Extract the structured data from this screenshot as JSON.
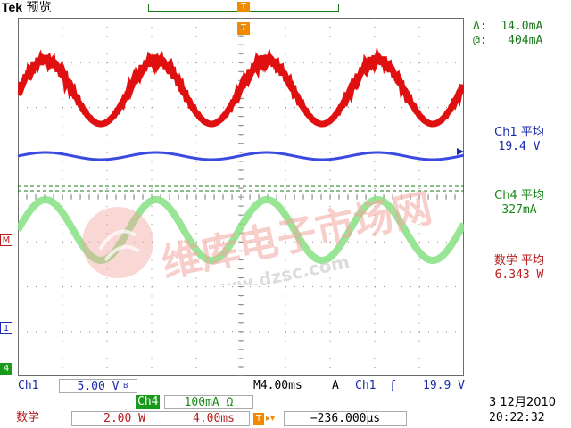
{
  "header": {
    "brand": "Tek",
    "mode": "预览"
  },
  "icons": {
    "trigger_position": "trigger-t-icon",
    "channel_bandwidth": "bw-limit-icon",
    "rising_slope": "rising-edge-icon"
  },
  "colors": {
    "ch1": "#2a3ad8",
    "ch4": "#7ee27a",
    "math": "#e01010",
    "cursor": "#1a7a1a",
    "trigger": "#f08a00"
  },
  "cursor": {
    "delta_label": "Δ:",
    "delta_value": "14.0mA",
    "at_label": "@:",
    "at_value": "404mA"
  },
  "measurements": {
    "ch1": {
      "name": "Ch1 平均",
      "value": "19.4 V"
    },
    "ch4": {
      "name": "Ch4 平均",
      "value": "327mA"
    },
    "math": {
      "name": "数学 平均",
      "value": "6.343 W"
    }
  },
  "markers": {
    "math": "M",
    "ch1": "1",
    "ch4": "4",
    "trigger": "T"
  },
  "status": {
    "ch1_label": "Ch1",
    "ch1_scale": "5.00 V",
    "bw": "B",
    "ch4_label": "Ch4",
    "ch4_scale": "100mA Ω",
    "timebase": "M4.00ms",
    "trigger_mode": "A",
    "trigger_source": "Ch1",
    "trigger_slope": "ʃ",
    "trigger_level": "19.9 V",
    "math_label": "数学",
    "math_vscale": "2.00 W",
    "math_hscale": "4.00ms",
    "trigger_offset": "−236.000μs",
    "date": "3 12月2010",
    "time": "20:22:32"
  },
  "watermark": {
    "text": "维库电子市场网",
    "url": "www.dzsc.com"
  }
}
